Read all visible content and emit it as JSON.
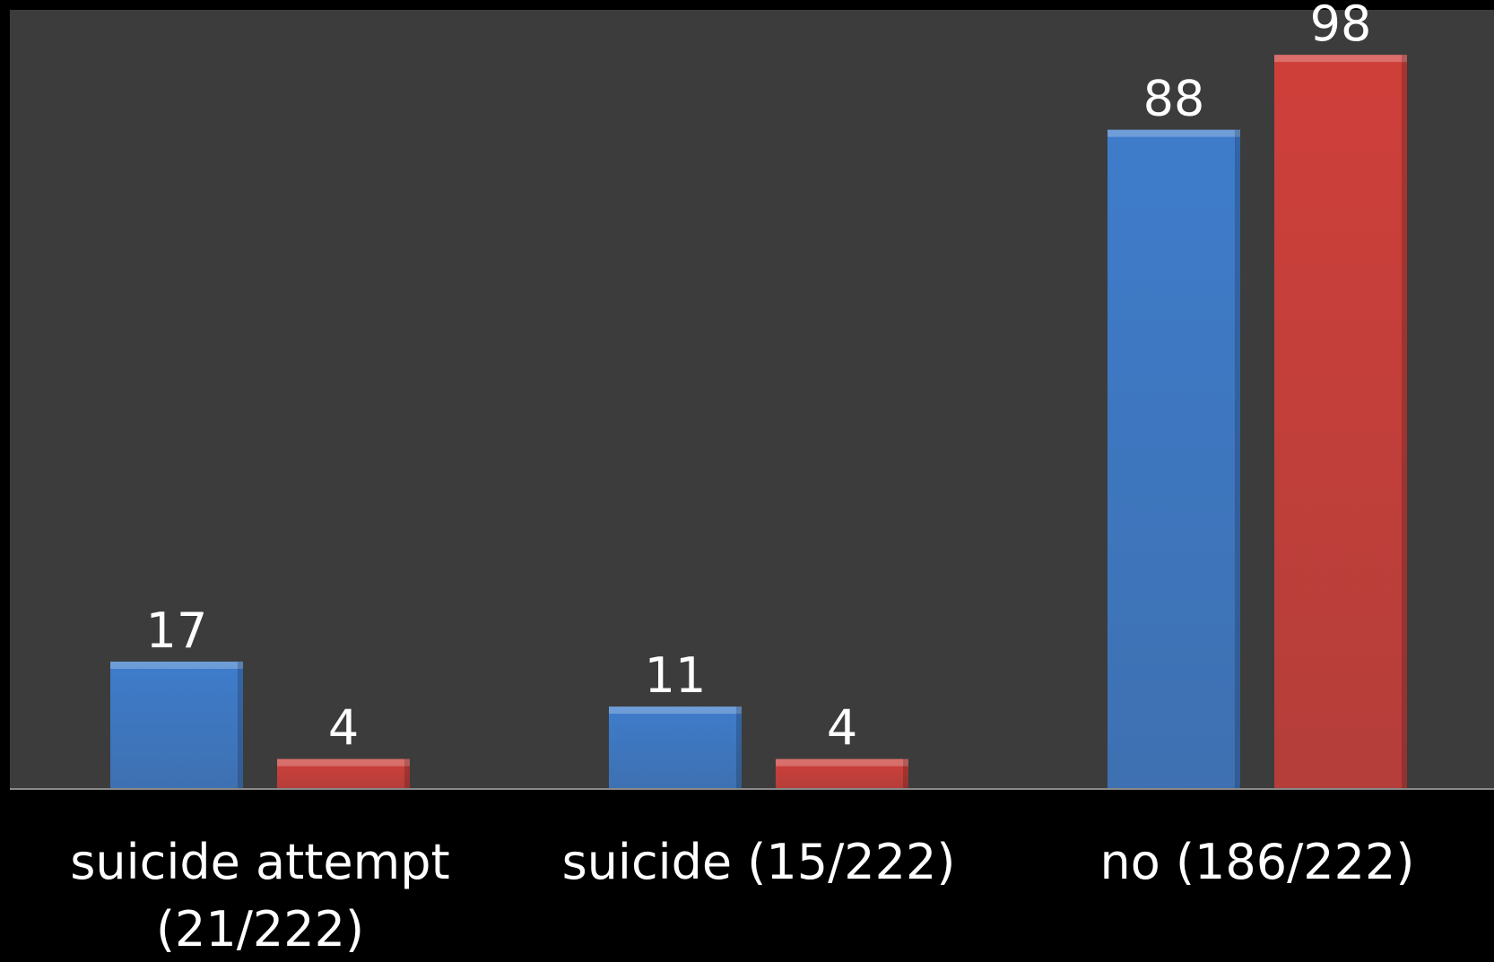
{
  "chart_data": {
    "type": "bar",
    "title": "",
    "xlabel": "",
    "ylabel": "",
    "categories": [
      [
        "suicide attempt",
        "(21/222)"
      ],
      [
        "suicide (15/222)"
      ],
      [
        "no (186/222)"
      ]
    ],
    "series": [
      {
        "values": [
          17,
          11,
          88
        ],
        "color": "#3e7ccb"
      },
      {
        "values": [
          4,
          4,
          98
        ],
        "color": "#cf3f3a"
      }
    ],
    "ylim": [
      0,
      104
    ],
    "grid": false,
    "legend": "none",
    "data_labels": true
  },
  "colors": {
    "page_background": "#000000",
    "plot_background": "#3c3c3c",
    "axis_line": "#8a8a8a",
    "text": "#ffffff"
  }
}
